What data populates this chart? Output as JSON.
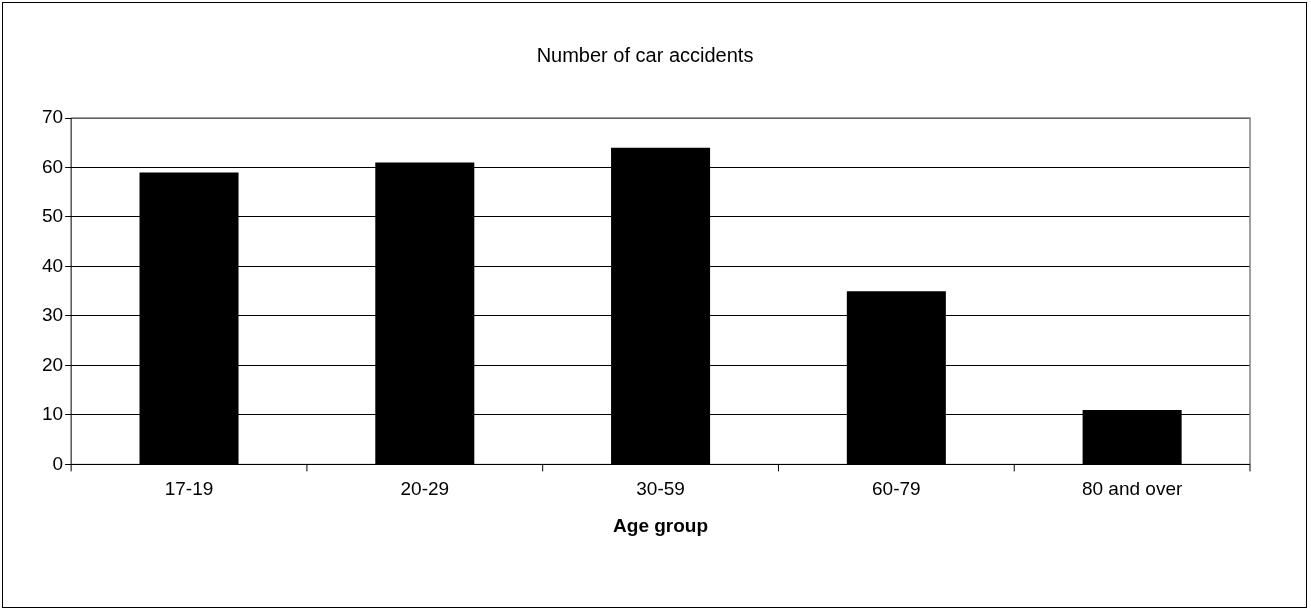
{
  "chart_data": {
    "type": "bar",
    "title": "Number of car accidents",
    "xlabel": "Age group",
    "categories": [
      "17-19",
      "20-29",
      "30-59",
      "60-79",
      "80 and over"
    ],
    "values": [
      59,
      61,
      64,
      35,
      11
    ],
    "color": "#000000",
    "ylim": [
      0,
      70
    ],
    "yticks": [
      0,
      10,
      20,
      30,
      40,
      50,
      60,
      70
    ],
    "grid": "y",
    "legend": false
  }
}
